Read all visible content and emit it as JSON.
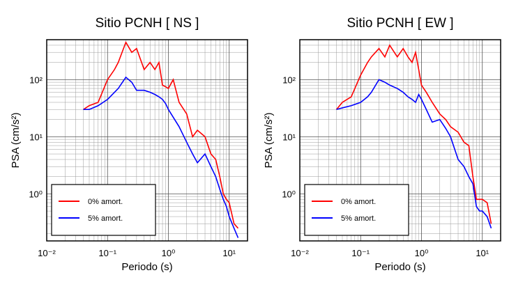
{
  "chart_data": [
    {
      "type": "line",
      "title": "Sitio PCNH [ NS ]",
      "xlabel": "Periodo (s)",
      "ylabel": "PSA (cm/s²)",
      "log_x": true,
      "log_y": true,
      "grid": true,
      "legend": "lower left",
      "xlim": [
        0.01,
        20
      ],
      "ylim": [
        0.15,
        500
      ],
      "xticks": [
        {
          "value": 0.01,
          "label": "10⁻²"
        },
        {
          "value": 0.1,
          "label": "10⁻¹"
        },
        {
          "value": 1,
          "label": "10⁰"
        },
        {
          "value": 10,
          "label": "10¹"
        }
      ],
      "yticks": [
        {
          "value": 1,
          "label": "10⁰"
        },
        {
          "value": 10,
          "label": "10¹"
        },
        {
          "value": 100,
          "label": "10²"
        }
      ],
      "x": [
        0.04,
        0.05,
        0.07,
        0.1,
        0.13,
        0.15,
        0.2,
        0.25,
        0.3,
        0.4,
        0.5,
        0.6,
        0.7,
        0.8,
        0.9,
        1.0,
        1.2,
        1.5,
        2,
        2.5,
        3,
        4,
        5,
        6,
        7,
        8,
        9,
        10,
        12,
        14
      ],
      "series": [
        {
          "name": "0% amort.",
          "color": "#ff0000",
          "values": [
            30,
            35,
            40,
            100,
            150,
            200,
            450,
            300,
            350,
            150,
            200,
            150,
            200,
            80,
            75,
            70,
            100,
            40,
            25,
            10,
            13,
            10,
            5,
            4,
            2,
            1,
            0.8,
            0.7,
            0.3,
            0.25
          ]
        },
        {
          "name": "5% amort.",
          "color": "#0000ff",
          "values": [
            30,
            30,
            35,
            45,
            60,
            70,
            110,
            90,
            65,
            65,
            60,
            55,
            50,
            45,
            38,
            30,
            22,
            15,
            8,
            5,
            3.5,
            5,
            3,
            2,
            1.2,
            0.8,
            0.6,
            0.4,
            0.25,
            0.17
          ]
        }
      ]
    },
    {
      "type": "line",
      "title": "Sitio PCNH [ EW ]",
      "xlabel": "Periodo (s)",
      "ylabel": "PSA (cm/s²)",
      "log_x": true,
      "log_y": true,
      "grid": true,
      "legend": "lower left",
      "xlim": [
        0.01,
        20
      ],
      "ylim": [
        0.15,
        500
      ],
      "xticks": [
        {
          "value": 0.01,
          "label": "10⁻²"
        },
        {
          "value": 0.1,
          "label": "10⁻¹"
        },
        {
          "value": 1,
          "label": "10⁰"
        },
        {
          "value": 10,
          "label": "10¹"
        }
      ],
      "yticks": [
        {
          "value": 1,
          "label": "10⁰"
        },
        {
          "value": 10,
          "label": "10¹"
        },
        {
          "value": 100,
          "label": "10²"
        }
      ],
      "x": [
        0.04,
        0.05,
        0.07,
        0.1,
        0.13,
        0.15,
        0.2,
        0.25,
        0.3,
        0.4,
        0.5,
        0.6,
        0.7,
        0.8,
        0.9,
        1.0,
        1.2,
        1.5,
        2,
        2.5,
        3,
        4,
        5,
        6,
        7,
        8,
        9,
        10,
        12,
        14
      ],
      "series": [
        {
          "name": "0% amort.",
          "color": "#ff0000",
          "values": [
            30,
            40,
            50,
            120,
            200,
            250,
            350,
            250,
            400,
            250,
            350,
            250,
            200,
            300,
            150,
            80,
            60,
            40,
            25,
            20,
            15,
            12,
            8,
            7,
            2,
            0.8,
            0.8,
            0.8,
            0.7,
            0.3
          ]
        },
        {
          "name": "5% amort.",
          "color": "#0000ff",
          "values": [
            30,
            32,
            35,
            40,
            50,
            60,
            100,
            90,
            80,
            70,
            60,
            50,
            45,
            40,
            55,
            45,
            30,
            18,
            20,
            14,
            10,
            4,
            3,
            2,
            1.5,
            0.6,
            0.5,
            0.5,
            0.4,
            0.25
          ]
        }
      ]
    }
  ]
}
